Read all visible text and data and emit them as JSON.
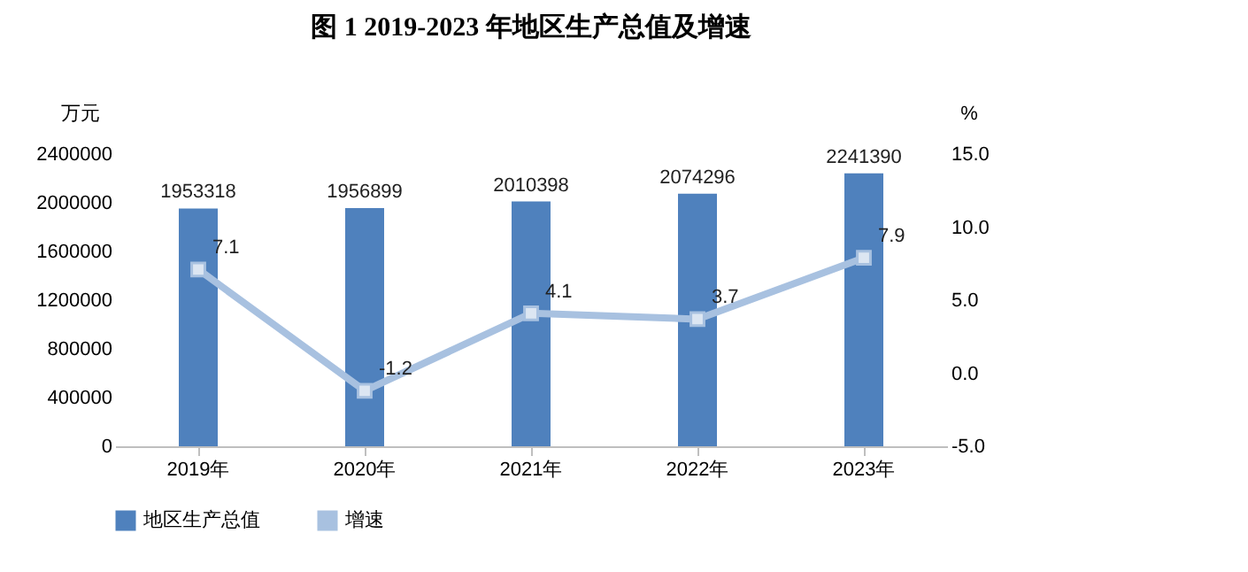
{
  "chart_data": {
    "type": "bar",
    "title": "图 1 2019-2023 年地区生产总值及增速",
    "ylabel": "万元",
    "y2label": "%",
    "categories": [
      "2019年",
      "2020年",
      "2021年",
      "2022年",
      "2023年"
    ],
    "series": [
      {
        "name": "地区生产总值",
        "color": "#4f81bd",
        "values": [
          1953318,
          1956899,
          2010398,
          2074296,
          2241390
        ]
      },
      {
        "name": "增速",
        "type": "line",
        "axis": "y2",
        "color": "#a8c1e0",
        "values": [
          7.1,
          -1.2,
          4.1,
          3.7,
          7.9
        ]
      }
    ],
    "ylim": [
      0,
      2400000
    ],
    "yticks": [
      0,
      400000,
      800000,
      1200000,
      1600000,
      2000000,
      2400000
    ],
    "y2lim": [
      -5,
      15
    ],
    "y2ticks": [
      {
        "value": -5,
        "label": "-5.0"
      },
      {
        "value": 0,
        "label": "0.0"
      },
      {
        "value": 5,
        "label": "5.0"
      },
      {
        "value": 10,
        "label": "10.0"
      },
      {
        "value": 15,
        "label": "15.0"
      }
    ],
    "data_labels": true,
    "legend": "bottom",
    "marker": "square",
    "line_style": "solid"
  }
}
